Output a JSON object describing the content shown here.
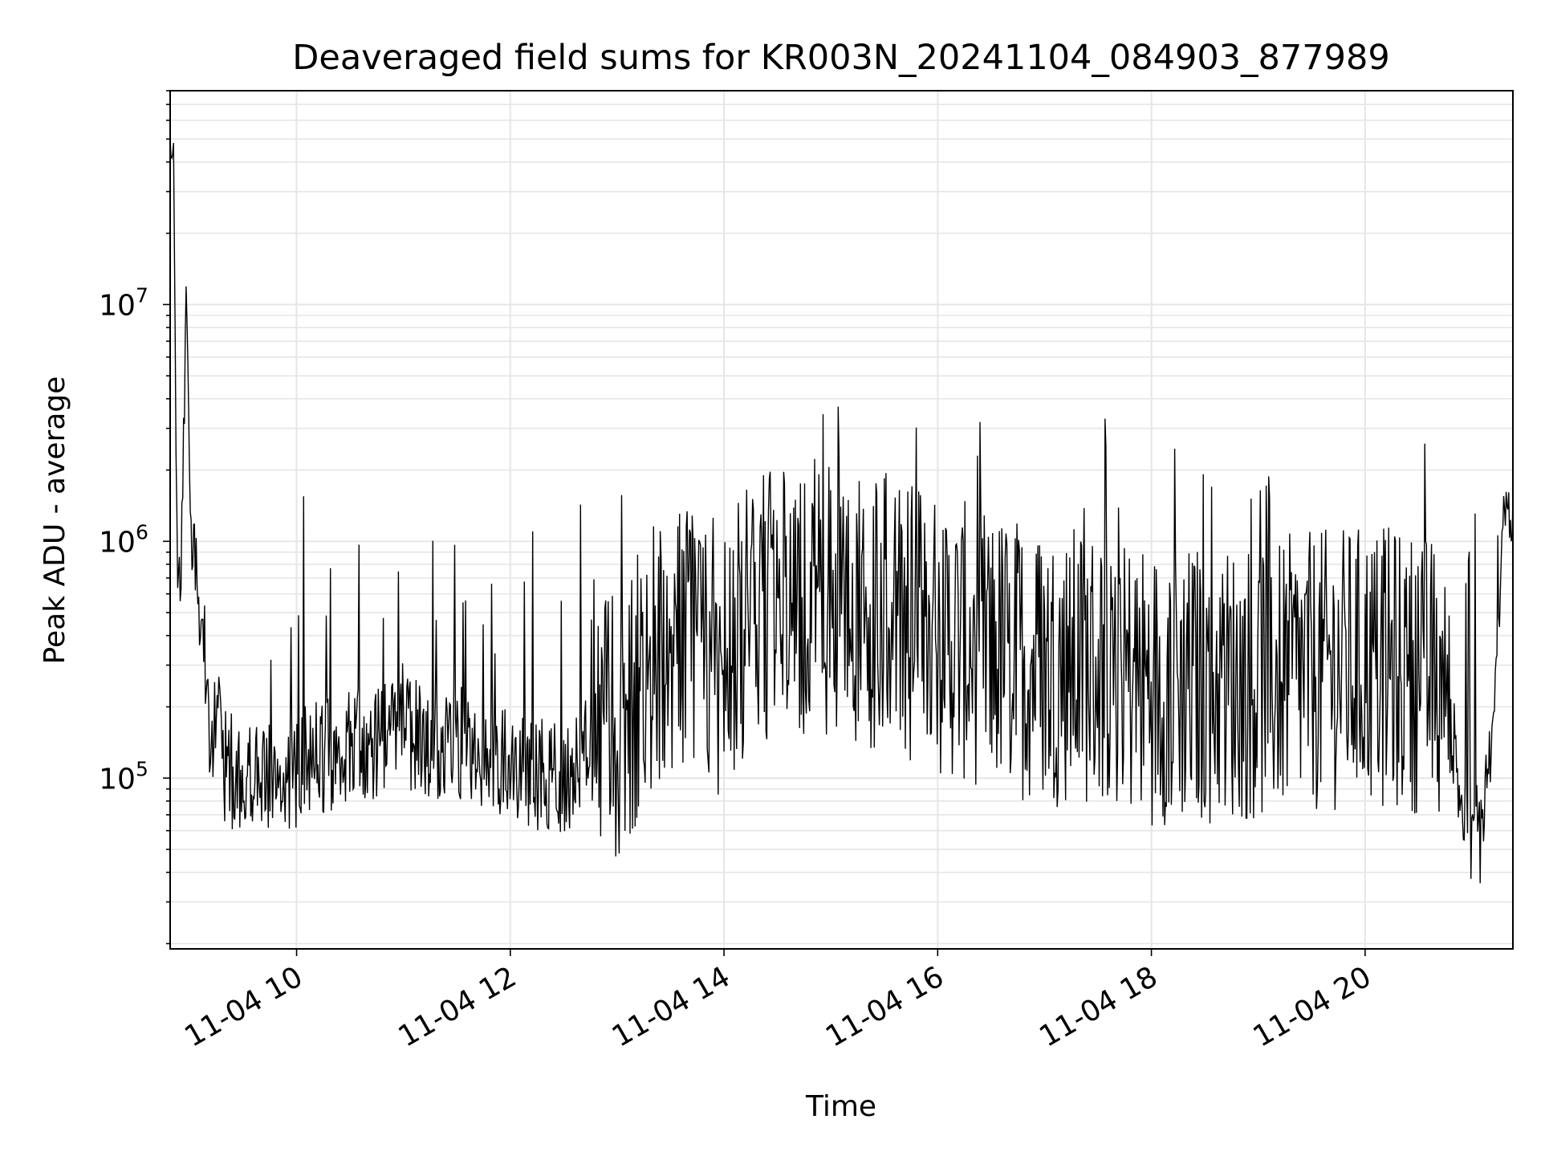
{
  "chart_data": {
    "type": "line",
    "title": "Deaveraged field sums for KR003N_20241104_084903_877989",
    "xlabel": "Time",
    "ylabel": "Peak ADU - average",
    "x_type": "time",
    "xlim": [
      "2024-11-04 08:49",
      "2024-11-04 21:23"
    ],
    "yscale": "log",
    "ylim": [
      19000,
      80000000
    ],
    "grid": true,
    "line_color": "#000000",
    "x_ticks": [
      {
        "label": "11-04 10",
        "time": "2024-11-04 10:00"
      },
      {
        "label": "11-04 12",
        "time": "2024-11-04 12:00"
      },
      {
        "label": "11-04 14",
        "time": "2024-11-04 14:00"
      },
      {
        "label": "11-04 16",
        "time": "2024-11-04 16:00"
      },
      {
        "label": "11-04 18",
        "time": "2024-11-04 18:00"
      },
      {
        "label": "11-04 20",
        "time": "2024-11-04 20:00"
      }
    ],
    "y_ticks": [
      {
        "base": "10",
        "exp": "5",
        "value": 100000
      },
      {
        "base": "10",
        "exp": "6",
        "value": 1000000
      },
      {
        "base": "10",
        "exp": "7",
        "value": 10000000
      }
    ],
    "series": [
      {
        "name": "",
        "x": [
          "2024-11-04 08:49",
          "2024-11-04 08:51",
          "2024-11-04 08:53",
          "2024-11-04 08:55",
          "2024-11-04 08:58",
          "2024-11-04 09:01",
          "2024-11-04 09:04",
          "2024-11-04 09:06",
          "2024-11-04 09:09",
          "2024-11-04 09:12",
          "2024-11-04 09:15",
          "2024-11-04 09:18",
          "2024-11-04 09:22",
          "2024-11-04 09:28",
          "2024-11-04 09:40",
          "2024-11-04 10:00",
          "2024-11-04 10:30",
          "2024-11-04 11:00",
          "2024-11-04 11:30",
          "2024-11-04 12:00",
          "2024-11-04 12:30",
          "2024-11-04 13:00",
          "2024-11-04 13:30",
          "2024-11-04 13:50",
          "2024-11-04 14:30",
          "2024-11-04 15:00",
          "2024-11-04 15:30",
          "2024-11-04 16:00",
          "2024-11-04 16:30",
          "2024-11-04 17:00",
          "2024-11-04 17:30",
          "2024-11-04 18:00",
          "2024-11-04 18:30",
          "2024-11-04 19:00",
          "2024-11-04 19:30",
          "2024-11-04 20:00",
          "2024-11-04 20:30",
          "2024-11-04 20:45",
          "2024-11-04 20:55",
          "2024-11-04 21:05",
          "2024-11-04 21:12",
          "2024-11-04 21:18",
          "2024-11-04 21:23"
        ],
        "values": [
          40000000,
          52000000,
          600000,
          700000,
          9500000,
          800000,
          1200000,
          450000,
          300000,
          150000,
          200000,
          120000,
          110000,
          100000,
          95000,
          110000,
          140000,
          150000,
          140000,
          110000,
          100000,
          180000,
          400000,
          300000,
          550000,
          600000,
          500000,
          400000,
          350000,
          300000,
          300000,
          250000,
          250000,
          260000,
          280000,
          300000,
          280000,
          250000,
          70000,
          60000,
          150000,
          1500000,
          1200000
        ]
      }
    ]
  }
}
